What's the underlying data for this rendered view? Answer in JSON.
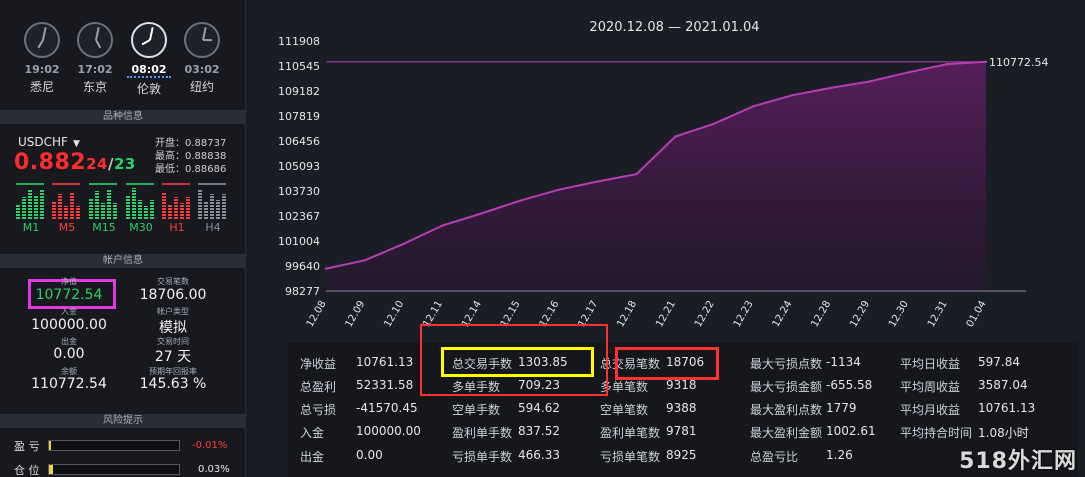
{
  "clocks": [
    {
      "time": "19:02",
      "city": "悉尼",
      "h": 7,
      "m": 2,
      "active": false
    },
    {
      "time": "17:02",
      "city": "东京",
      "h": 5,
      "m": 2,
      "active": false
    },
    {
      "time": "08:02",
      "city": "伦敦",
      "h": 8,
      "m": 2,
      "active": true
    },
    {
      "time": "03:02",
      "city": "纽约",
      "h": 3,
      "m": 2,
      "active": false
    }
  ],
  "sections": {
    "symbol_info": "品种信息",
    "account_info": "帐户信息",
    "risk": "风险提示"
  },
  "symbol": {
    "name": "USDCHF",
    "price_main": "0.882",
    "price_mid": "24",
    "price_sep": "/",
    "price_end": "23",
    "open_label": "开盘：",
    "open": "0.88737",
    "high_label": "最高：",
    "high": "0.88838",
    "low_label": "最低：",
    "low": "0.88686"
  },
  "timeframes": [
    {
      "label": "M1",
      "color": "#2bd16a"
    },
    {
      "label": "M5",
      "color": "#ff3b3b"
    },
    {
      "label": "M15",
      "color": "#2bd16a"
    },
    {
      "label": "M30",
      "color": "#2bd16a"
    },
    {
      "label": "H1",
      "color": "#ff3b3b"
    },
    {
      "label": "H4",
      "color": "#8a8f99"
    }
  ],
  "account": {
    "equity_label": "净值",
    "equity": "10772.54",
    "trades_label": "交易笔数",
    "trades": "18706.00",
    "deposit_label": "入金",
    "deposit": "100000.00",
    "acctype_label": "帐户类型",
    "acctype": "模拟",
    "withdraw_label": "出金",
    "withdraw": "0.00",
    "tradetime_label": "交易时间",
    "tradetime": "27 天",
    "balance_label": "余额",
    "balance": "110772.54",
    "annual_label": "预期年回报率",
    "annual": "145.63 %"
  },
  "risk": [
    {
      "label": "盈 亏",
      "value": "-0.01%",
      "color": "#ff3b3b",
      "fill": 0.01
    },
    {
      "label": "仓 位",
      "value": "0.03%",
      "color": "#e6e6e6",
      "fill": 0.03
    }
  ],
  "chart_data": {
    "type": "area",
    "title": "2020.12.08 — 2021.01.04",
    "categories": [
      "12.08",
      "12.09",
      "12.10",
      "12.11",
      "12.14",
      "12.15",
      "12.16",
      "12.17",
      "12.18",
      "12.21",
      "12.22",
      "12.23",
      "12.24",
      "12.28",
      "12.29",
      "12.30",
      "12.31",
      "01.04"
    ],
    "yticks": [
      "111908",
      "110545",
      "109182",
      "107819",
      "106456",
      "105093",
      "103730",
      "102367",
      "101004",
      "99640",
      "98277"
    ],
    "ylim": [
      98277,
      111908
    ],
    "values": [
      99500,
      99950,
      100850,
      101850,
      102500,
      103200,
      103800,
      104250,
      104650,
      106700,
      107400,
      108350,
      108950,
      109350,
      109700,
      110200,
      110650,
      110772.54
    ],
    "last_label": "110772.54",
    "reference_value": 110772.54,
    "line_color": "#b43fb4",
    "fill_color": "#5a1f5e"
  },
  "stats": [
    [
      {
        "k": "净收益",
        "v": "10761.13"
      },
      {
        "k": "总盈利",
        "v": "52331.58"
      },
      {
        "k": "总亏损",
        "v": "-41570.45"
      },
      {
        "k": "入金",
        "v": "100000.00"
      },
      {
        "k": "出金",
        "v": "0.00"
      }
    ],
    [
      {
        "k": "总交易手数",
        "v": "1303.85"
      },
      {
        "k": "多单手数",
        "v": "709.23"
      },
      {
        "k": "空单手数",
        "v": "594.62"
      },
      {
        "k": "盈利单手数",
        "v": "837.52"
      },
      {
        "k": "亏损单手数",
        "v": "466.33"
      }
    ],
    [
      {
        "k": "总交易笔数",
        "v": "18706"
      },
      {
        "k": "多单笔数",
        "v": "9318"
      },
      {
        "k": "空单笔数",
        "v": "9388"
      },
      {
        "k": "盈利单笔数",
        "v": "9781"
      },
      {
        "k": "亏损单笔数",
        "v": "8925"
      }
    ],
    [
      {
        "k": "最大亏损点数",
        "v": "-1134"
      },
      {
        "k": "最大亏损金额",
        "v": "-655.58"
      },
      {
        "k": "最大盈利点数",
        "v": "1779"
      },
      {
        "k": "最大盈利金额",
        "v": "1002.61"
      },
      {
        "k": "总盈亏比",
        "v": "1.26"
      }
    ],
    [
      {
        "k": "平均日收益",
        "v": "597.84"
      },
      {
        "k": "平均周收益",
        "v": "3587.04"
      },
      {
        "k": "平均月收益",
        "v": "10761.13"
      },
      {
        "k": "平均持合时间",
        "v": "1.08小时"
      },
      {
        "k": "",
        "v": ""
      }
    ]
  ],
  "watermark": "518外汇网"
}
